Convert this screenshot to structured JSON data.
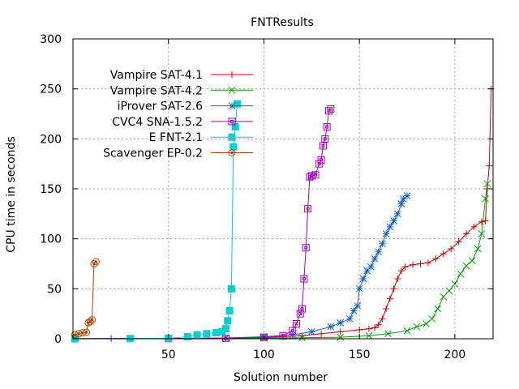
{
  "chart_data": {
    "type": "line",
    "title": "FNTResults",
    "xlabel": "Solution number",
    "ylabel": "CPU time in seconds",
    "xlim": [
      0,
      220
    ],
    "ylim": [
      0,
      300
    ],
    "xticks": [
      "50",
      "100",
      "150",
      "200"
    ],
    "yticks": [
      "0",
      "50",
      "100",
      "150",
      "200",
      "250",
      "300"
    ],
    "grid": true,
    "legend_position": "top-left",
    "series": [
      {
        "name": "Vampire SAT-4.1",
        "color": "#cc0000",
        "marker": "plus",
        "points": [
          [
            1,
            0.1
          ],
          [
            20,
            0.2
          ],
          [
            50,
            0.3
          ],
          [
            80,
            0.6
          ],
          [
            100,
            1.0
          ],
          [
            110,
            2
          ],
          [
            120,
            3
          ],
          [
            130,
            5
          ],
          [
            140,
            7
          ],
          [
            150,
            9
          ],
          [
            155,
            10
          ],
          [
            158,
            11
          ],
          [
            160,
            14
          ],
          [
            162,
            20
          ],
          [
            164,
            30
          ],
          [
            166,
            40
          ],
          [
            168,
            50
          ],
          [
            170,
            60
          ],
          [
            172,
            68
          ],
          [
            174,
            72
          ],
          [
            178,
            74
          ],
          [
            182,
            75
          ],
          [
            186,
            76
          ],
          [
            190,
            80
          ],
          [
            194,
            85
          ],
          [
            198,
            90
          ],
          [
            202,
            97
          ],
          [
            206,
            105
          ],
          [
            210,
            112
          ],
          [
            214,
            117
          ],
          [
            216,
            118
          ],
          [
            217,
            150
          ],
          [
            218,
            173
          ],
          [
            219,
            250
          ]
        ]
      },
      {
        "name": "Vampire SAT-4.2",
        "color": "#00a000",
        "marker": "x",
        "points": [
          [
            1,
            0.1
          ],
          [
            50,
            0.2
          ],
          [
            100,
            0.5
          ],
          [
            120,
            1
          ],
          [
            140,
            1.5
          ],
          [
            155,
            3
          ],
          [
            165,
            5
          ],
          [
            175,
            8
          ],
          [
            180,
            12
          ],
          [
            185,
            15
          ],
          [
            188,
            20
          ],
          [
            191,
            30
          ],
          [
            194,
            42
          ],
          [
            197,
            48
          ],
          [
            200,
            55
          ],
          [
            203,
            65
          ],
          [
            206,
            73
          ],
          [
            209,
            78
          ],
          [
            212,
            90
          ],
          [
            214,
            105
          ],
          [
            216,
            140
          ],
          [
            217,
            155
          ]
        ]
      },
      {
        "name": "iProver SAT-2.6",
        "color": "#1060d0",
        "marker": "star",
        "points": [
          [
            1,
            0.1
          ],
          [
            50,
            0.3
          ],
          [
            80,
            0.8
          ],
          [
            100,
            2
          ],
          [
            115,
            4
          ],
          [
            125,
            7
          ],
          [
            135,
            12
          ],
          [
            140,
            16
          ],
          [
            145,
            20
          ],
          [
            147,
            28
          ],
          [
            149,
            33
          ],
          [
            150,
            50
          ],
          [
            152,
            60
          ],
          [
            154,
            68
          ],
          [
            156,
            72
          ],
          [
            158,
            80
          ],
          [
            160,
            87
          ],
          [
            162,
            95
          ],
          [
            164,
            105
          ],
          [
            166,
            112
          ],
          [
            168,
            118
          ],
          [
            170,
            125
          ],
          [
            172,
            135
          ],
          [
            173,
            140
          ],
          [
            175,
            143
          ]
        ]
      },
      {
        "name": "CVC4 SNA-1.5.2",
        "color": "#a000c0",
        "marker": "box",
        "points": [
          [
            1,
            0.1
          ],
          [
            50,
            0.2
          ],
          [
            80,
            0.5
          ],
          [
            100,
            1.5
          ],
          [
            110,
            3
          ],
          [
            115,
            8
          ],
          [
            117,
            15
          ],
          [
            119,
            25
          ],
          [
            120,
            30
          ],
          [
            121,
            60
          ],
          [
            122,
            91
          ],
          [
            123,
            130
          ],
          [
            124,
            162
          ],
          [
            125,
            163
          ],
          [
            127,
            164
          ],
          [
            129,
            175
          ],
          [
            130,
            179
          ],
          [
            131,
            193
          ],
          [
            132,
            200
          ],
          [
            133,
            212
          ],
          [
            134,
            228
          ],
          [
            135,
            230
          ]
        ]
      },
      {
        "name": "E FNT-2.1",
        "color": "#00d0d0",
        "marker": "filledbox",
        "points": [
          [
            1,
            0.1
          ],
          [
            30,
            0.2
          ],
          [
            50,
            0.5
          ],
          [
            60,
            2
          ],
          [
            65,
            4
          ],
          [
            70,
            5
          ],
          [
            75,
            6
          ],
          [
            78,
            7
          ],
          [
            80,
            10
          ],
          [
            81,
            18
          ],
          [
            82,
            28
          ],
          [
            83,
            50
          ],
          [
            84,
            192
          ],
          [
            85,
            212
          ],
          [
            86,
            235
          ]
        ]
      },
      {
        "name": "Scavenger EP-0.2",
        "color": "#b04000",
        "marker": "circle",
        "points": [
          [
            1,
            4
          ],
          [
            3,
            5
          ],
          [
            5,
            6
          ],
          [
            7,
            6.5
          ],
          [
            8,
            16
          ],
          [
            9,
            17
          ],
          [
            10,
            19
          ],
          [
            11,
            75
          ],
          [
            12,
            77
          ]
        ]
      }
    ]
  }
}
